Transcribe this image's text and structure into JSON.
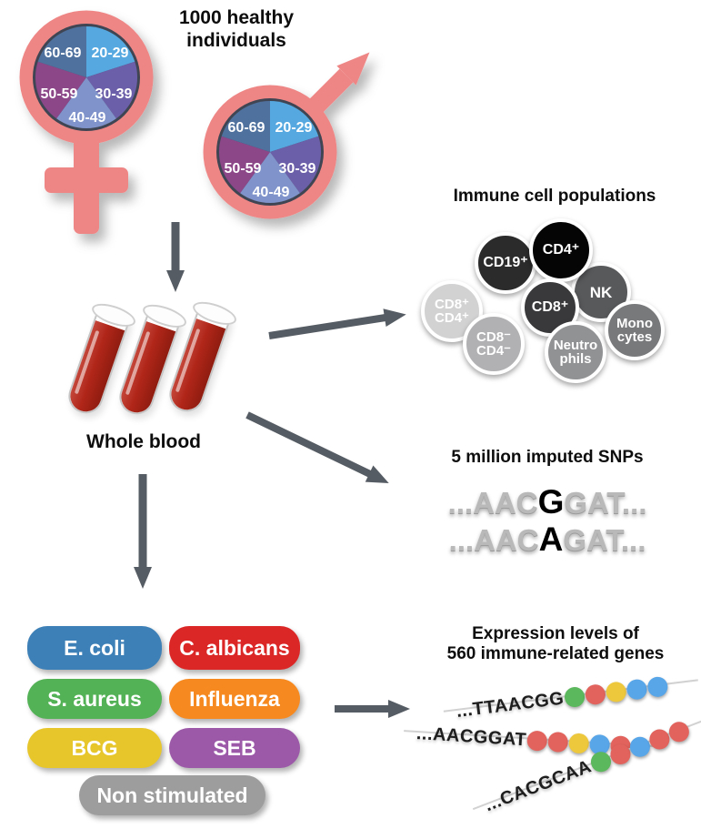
{
  "cohort": {
    "title": "1000 healthy\nindividuals",
    "age_groups": [
      "20-29",
      "30-39",
      "40-49",
      "50-59",
      "60-69"
    ],
    "colors": {
      "age_20_29": "#54a9e0",
      "age_30_39": "#6c5fa9",
      "age_40_49": "#8094cb",
      "age_50_59": "#8c4789",
      "age_60_69": "#50719e",
      "symbol": "#ef8686",
      "pie_border": "#3f4553"
    }
  },
  "whole_blood": {
    "label": "Whole blood"
  },
  "immune_cells": {
    "title": "Immune cell populations",
    "cells": [
      {
        "label": "CD8⁺\nCD4⁺",
        "bg": "#d2d2d3",
        "fg": "#58595b"
      },
      {
        "label": "CD19⁺",
        "bg": "#2b2b2b",
        "fg": "#ffffff"
      },
      {
        "label": "NK",
        "bg": "#58595b",
        "fg": "#ffffff"
      },
      {
        "label": "CD4⁺",
        "bg": "#050505",
        "fg": "#ffffff"
      },
      {
        "label": "CD8⁺",
        "bg": "#39393b",
        "fg": "#ffffff"
      },
      {
        "label": "CD8⁻\nCD4⁻",
        "bg": "#b1b1b3",
        "fg": "#4c4c4e"
      },
      {
        "label": "Neutro\nphils",
        "bg": "#919294",
        "fg": "#ffffff"
      },
      {
        "label": "Mono\ncytes",
        "bg": "#78797b",
        "fg": "#ffffff"
      }
    ]
  },
  "snps": {
    "title": "5 million imputed SNPs",
    "lines": [
      {
        "pre": "...AAC",
        "snp": "G",
        "post": "GAT..."
      },
      {
        "pre": "...AAC",
        "snp": "A",
        "post": "GAT..."
      }
    ]
  },
  "stimulations": {
    "items": [
      {
        "label": "E. coli",
        "color": "#3d80b7"
      },
      {
        "label": "C. albicans",
        "color": "#dc2727"
      },
      {
        "label": "S. aureus",
        "color": "#53b156"
      },
      {
        "label": "Influenza",
        "color": "#f6891f"
      },
      {
        "label": "BCG",
        "color": "#e7c62b"
      },
      {
        "label": "SEB",
        "color": "#9b59a8"
      },
      {
        "label": "Non stimulated",
        "color": "#9d9d9d"
      }
    ]
  },
  "expression": {
    "title": "Expression levels of\n560 immune-related genes",
    "dot_palette": {
      "green": "#5cb85c",
      "red": "#e2635d",
      "yellow": "#edc73c",
      "blue": "#58a5e8"
    },
    "reads": [
      {
        "seq": "...TTAACGG",
        "dots": [
          "green",
          "red",
          "yellow",
          "blue",
          "blue"
        ]
      },
      {
        "seq": "...AACGGAT",
        "dots": [
          "red",
          "red",
          "yellow",
          "blue",
          "red"
        ]
      },
      {
        "seq": "...CACGCAA",
        "dots": [
          "green",
          "red",
          "blue",
          "red",
          "red"
        ]
      }
    ]
  },
  "arrow_color": "#565c63"
}
